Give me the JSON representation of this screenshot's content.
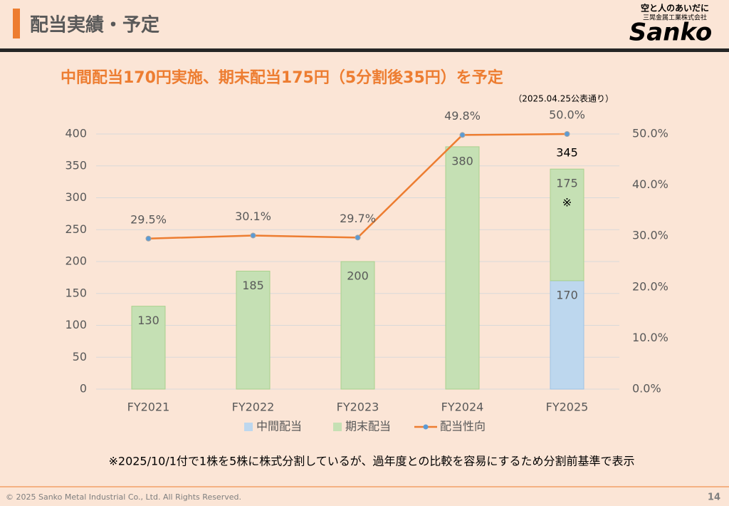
{
  "header": {
    "title": "配当実績・予定",
    "logo_tagline": "空と人のあいだに",
    "logo_company": "三晃金属工業株式会社",
    "logo_brand": "Sanko"
  },
  "headline": "中間配当170円実施、期末配当175円（5分割後35円）を予定",
  "subheadline": "（2025.04.25公表通り）",
  "chart_data": {
    "type": "bar",
    "categories": [
      "FY2021",
      "FY2022",
      "FY2023",
      "FY2024",
      "FY2025"
    ],
    "series": [
      {
        "name": "中間配当",
        "color": "#bdd7ee",
        "values": [
          null,
          null,
          null,
          null,
          170
        ]
      },
      {
        "name": "期末配当",
        "color": "#c5e0b4",
        "values": [
          130,
          185,
          200,
          380,
          175
        ]
      },
      {
        "name": "配当性向",
        "type": "line",
        "axis": "y2",
        "color": "#ed7d31",
        "values": [
          29.5,
          30.1,
          29.7,
          49.8,
          50.0
        ],
        "value_labels": [
          "29.5%",
          "30.1%",
          "29.7%",
          "49.8%",
          "50.0%"
        ]
      }
    ],
    "total_labels": [
      null,
      null,
      null,
      null,
      "345"
    ],
    "note_mark": "※",
    "ylim": [
      0,
      400
    ],
    "yticks": [
      0,
      50,
      100,
      150,
      200,
      250,
      300,
      350,
      400
    ],
    "y2lim": [
      0,
      50
    ],
    "y2ticks": [
      {
        "value": 0,
        "label": "0.0%"
      },
      {
        "value": 10,
        "label": "10.0%"
      },
      {
        "value": 20,
        "label": "20.0%"
      },
      {
        "value": 30,
        "label": "30.0%"
      },
      {
        "value": 40,
        "label": "40.0%"
      },
      {
        "value": 50,
        "label": "50.0%"
      }
    ],
    "grid": true,
    "legend": "bottom"
  },
  "footnote": "※2025/10/1付で1株を5株に株式分割しているが、過年度との比較を容易にするため分割前基準で表示",
  "footer": {
    "copyright": "© 2025 Sanko Metal Industrial Co., Ltd. All Rights Reserved.",
    "page": "14"
  }
}
